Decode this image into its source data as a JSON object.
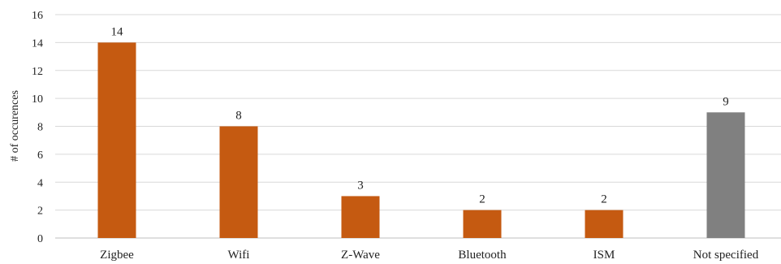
{
  "chart_data": {
    "type": "bar",
    "title": "",
    "xlabel": "",
    "ylabel": "# of occurences",
    "ylim": [
      0,
      16
    ],
    "ytick_step": 2,
    "grid": true,
    "legend": "none",
    "categories": [
      "Zigbee",
      "Wifi",
      "Z-Wave",
      "Bluetooth",
      "ISM",
      "Not specified"
    ],
    "values": [
      14,
      8,
      3,
      2,
      2,
      9
    ],
    "data_labels": [
      "14",
      "8",
      "3",
      "2",
      "2",
      "9"
    ],
    "colors": [
      "#c55a11",
      "#c55a11",
      "#c55a11",
      "#c55a11",
      "#c55a11",
      "#808080"
    ]
  }
}
